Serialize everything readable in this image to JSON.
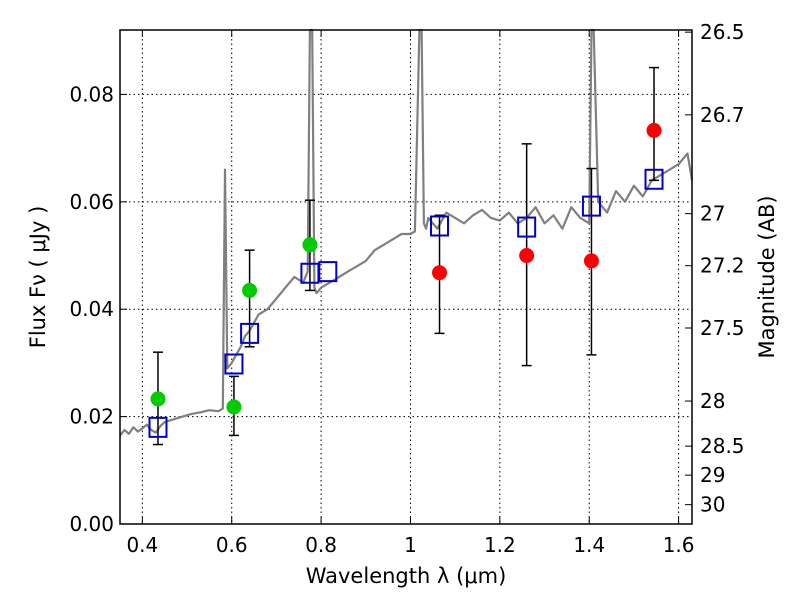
{
  "chart_data": {
    "type": "scatter",
    "xlabel": "Wavelength  λ (μm)",
    "ylabel": "Flux  Fν  ( μJy )",
    "y2label": "Magnitude (AB)",
    "xlim": [
      0.35,
      1.63
    ],
    "ylim": [
      0.0,
      0.092
    ],
    "grid": true,
    "x_ticks": [
      {
        "value": 0.4,
        "label": "0.4"
      },
      {
        "value": 0.6,
        "label": "0.6"
      },
      {
        "value": 0.8,
        "label": "0.8"
      },
      {
        "value": 1.0,
        "label": "1"
      },
      {
        "value": 1.2,
        "label": "1.2"
      },
      {
        "value": 1.4,
        "label": "1.4"
      },
      {
        "value": 1.6,
        "label": "1.6"
      }
    ],
    "y_ticks": [
      {
        "value": 0.0,
        "label": "0.00"
      },
      {
        "value": 0.02,
        "label": "0.02"
      },
      {
        "value": 0.04,
        "label": "0.04"
      },
      {
        "value": 0.06,
        "label": "0.06"
      },
      {
        "value": 0.08,
        "label": "0.08"
      }
    ],
    "y2_ticks": [
      {
        "label": "26.5",
        "flux": 0.0916
      },
      {
        "label": "26.7",
        "flux": 0.0762
      },
      {
        "label": "27",
        "flux": 0.0578
      },
      {
        "label": "27.2",
        "flux": 0.0481
      },
      {
        "label": "27.5",
        "flux": 0.0365
      },
      {
        "label": "28",
        "flux": 0.0229
      },
      {
        "label": "28.5",
        "flux": 0.0145
      },
      {
        "label": "29",
        "flux": 0.0091
      },
      {
        "label": "30",
        "flux": 0.0036
      }
    ],
    "spectrum": {
      "color": "#808080",
      "x": [
        0.35,
        0.36,
        0.37,
        0.38,
        0.39,
        0.4,
        0.41,
        0.42,
        0.43,
        0.44,
        0.45,
        0.47,
        0.49,
        0.51,
        0.53,
        0.55,
        0.57,
        0.58,
        0.585,
        0.59,
        0.6,
        0.62,
        0.63,
        0.64,
        0.66,
        0.68,
        0.7,
        0.72,
        0.74,
        0.76,
        0.77,
        0.775,
        0.78,
        0.785,
        0.79,
        0.8,
        0.82,
        0.84,
        0.86,
        0.88,
        0.9,
        0.92,
        0.94,
        0.96,
        0.98,
        1.0,
        1.01,
        1.02,
        1.025,
        1.03,
        1.035,
        1.04,
        1.06,
        1.08,
        1.1,
        1.12,
        1.14,
        1.16,
        1.18,
        1.2,
        1.22,
        1.24,
        1.26,
        1.28,
        1.3,
        1.32,
        1.34,
        1.36,
        1.38,
        1.4,
        1.405,
        1.41,
        1.42,
        1.44,
        1.46,
        1.48,
        1.5,
        1.52,
        1.54,
        1.56,
        1.58,
        1.6,
        1.62,
        1.63
      ],
      "y": [
        0.0165,
        0.0175,
        0.0168,
        0.018,
        0.0172,
        0.0178,
        0.0185,
        0.0175,
        0.017,
        0.0182,
        0.019,
        0.0195,
        0.02,
        0.0205,
        0.0208,
        0.0212,
        0.021,
        0.0215,
        0.066,
        0.029,
        0.03,
        0.033,
        0.035,
        0.036,
        0.039,
        0.04,
        0.042,
        0.044,
        0.046,
        0.045,
        0.047,
        0.092,
        0.092,
        0.044,
        0.043,
        0.044,
        0.045,
        0.046,
        0.047,
        0.048,
        0.049,
        0.051,
        0.052,
        0.053,
        0.054,
        0.054,
        0.0545,
        0.092,
        0.092,
        0.056,
        0.055,
        0.057,
        0.055,
        0.058,
        0.057,
        0.056,
        0.0575,
        0.0585,
        0.057,
        0.0565,
        0.058,
        0.056,
        0.057,
        0.059,
        0.056,
        0.0575,
        0.055,
        0.059,
        0.057,
        0.056,
        0.092,
        0.092,
        0.06,
        0.058,
        0.062,
        0.06,
        0.063,
        0.061,
        0.064,
        0.065,
        0.066,
        0.067,
        0.069,
        0.064
      ]
    },
    "series": [
      {
        "name": "",
        "color": "#00cc00",
        "marker": "circle",
        "x": [
          0.435,
          0.605,
          0.64,
          0.775
        ],
        "y": [
          0.0233,
          0.0218,
          0.0435,
          0.052
        ],
        "yerr_low": [
          0.0148,
          0.0165,
          0.033,
          0.0435
        ],
        "yerr_high": [
          0.032,
          0.0275,
          0.051,
          0.0603
        ]
      },
      {
        "name": "",
        "color": "#ff0000",
        "marker": "circle",
        "x": [
          1.065,
          1.26,
          1.405,
          1.545
        ],
        "y": [
          0.0468,
          0.05,
          0.049,
          0.0733
        ],
        "yerr_low": [
          0.0355,
          0.0295,
          0.0315,
          0.064
        ],
        "yerr_high": [
          0.0575,
          0.0708,
          0.0662,
          0.085
        ]
      },
      {
        "name": "",
        "color": "#0000cc",
        "marker": "square",
        "x": [
          0.435,
          0.605,
          0.64,
          0.775,
          0.815,
          1.065,
          1.26,
          1.405,
          1.545
        ],
        "y": [
          0.018,
          0.0298,
          0.0355,
          0.0467,
          0.047,
          0.0555,
          0.0553,
          0.0592,
          0.0642
        ]
      }
    ]
  }
}
